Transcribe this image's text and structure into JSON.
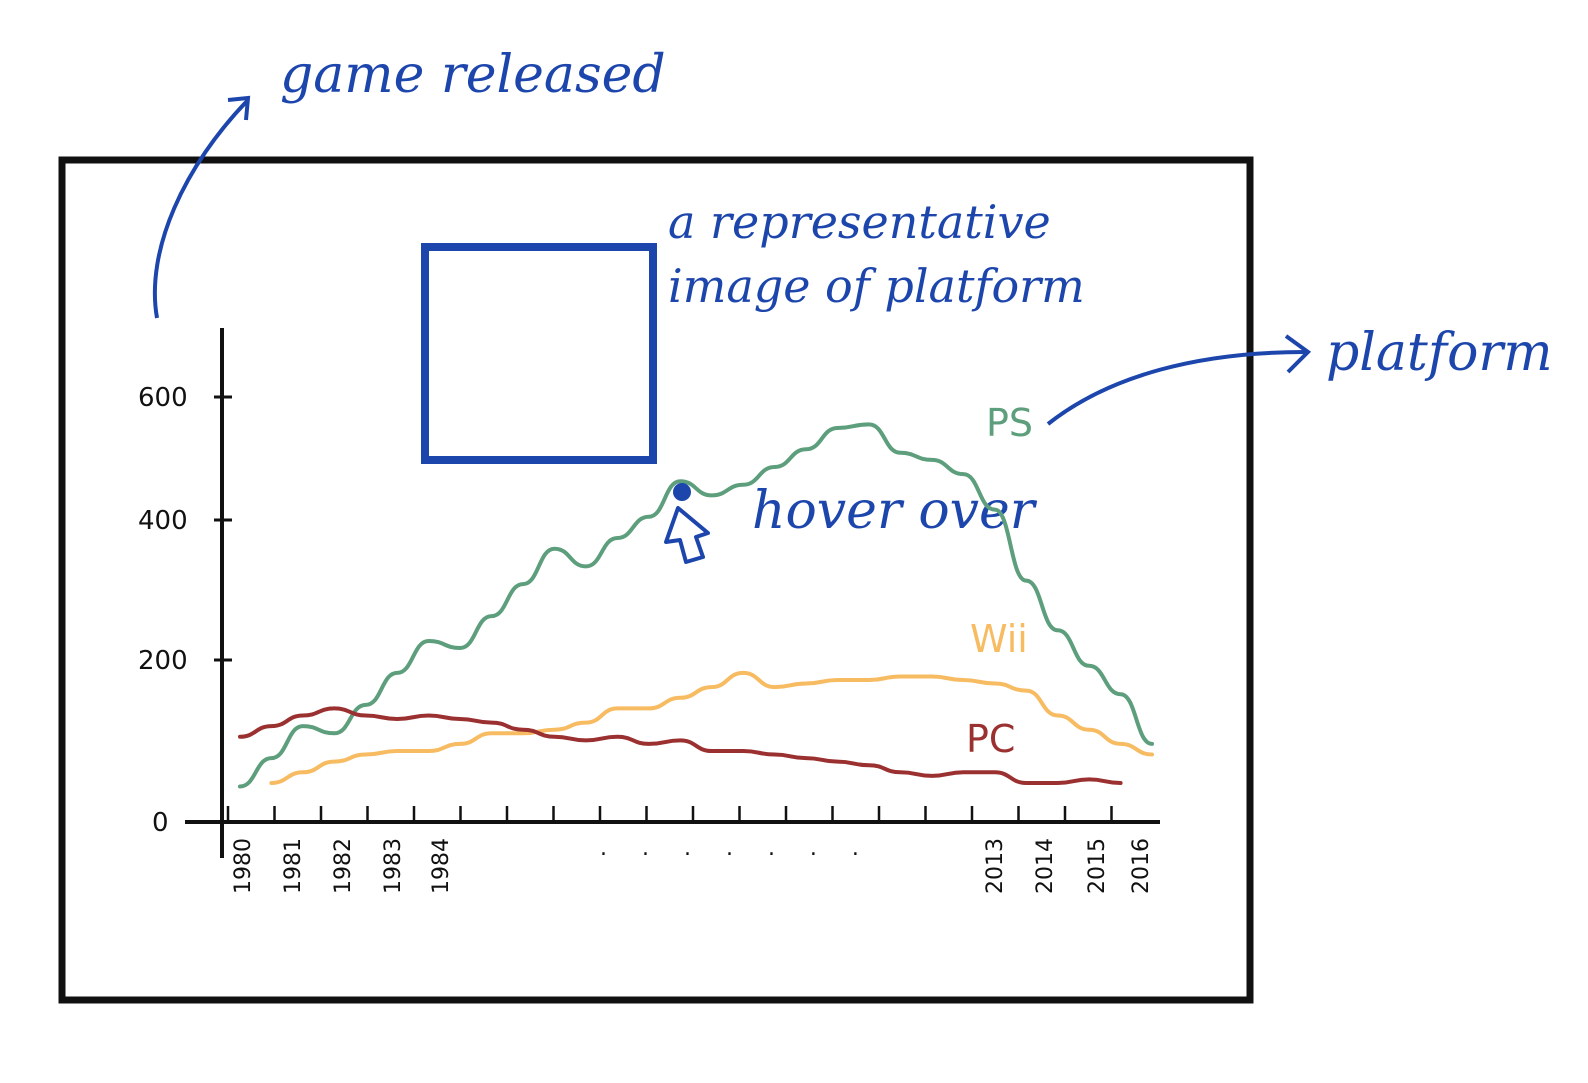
{
  "annotations": {
    "game_released": "game released",
    "platform": "platform",
    "image_note_line1": "a representative",
    "image_note_line2": "image of platform",
    "hover_over": "hover over"
  },
  "colors": {
    "frame": "#111111",
    "annotation": "#1d46ad",
    "ps": "#5d9e7c",
    "wii": "#f7bb62",
    "pc": "#9b3030"
  },
  "icons": [
    "cursor-arrow-icon",
    "hover-point-icon",
    "arrow-curve-icon",
    "image-placeholder"
  ],
  "chart_data": {
    "type": "line",
    "title": "",
    "xlabel": "",
    "ylabel": "",
    "y_ticks": [
      "0",
      "200",
      "400",
      "600"
    ],
    "ylim": [
      0,
      650
    ],
    "x_tick_labels": [
      "1980",
      "1981",
      "1982",
      "1983",
      "1984",
      "2013",
      "2014",
      "2015",
      "2016"
    ],
    "ellipsis": ". . . . . . .",
    "grid": false,
    "legend": "inline labels at line ends",
    "series": [
      {
        "name": "PS",
        "color": "#5d9e7c",
        "values": [
          50,
          90,
          135,
          125,
          165,
          210,
          255,
          245,
          290,
          335,
          385,
          360,
          400,
          430,
          480,
          460,
          475,
          500,
          525,
          555,
          560,
          520,
          510,
          490,
          440,
          340,
          270,
          220,
          180,
          110
        ]
      },
      {
        "name": "Wii",
        "color": "#f7bb62",
        "values": [
          null,
          55,
          70,
          85,
          95,
          100,
          100,
          110,
          125,
          125,
          130,
          140,
          160,
          160,
          175,
          190,
          210,
          190,
          195,
          200,
          200,
          205,
          205,
          200,
          195,
          185,
          150,
          130,
          110,
          95
        ]
      },
      {
        "name": "PC",
        "color": "#9b3030",
        "values": [
          120,
          135,
          150,
          160,
          150,
          145,
          150,
          145,
          140,
          130,
          120,
          115,
          120,
          110,
          115,
          100,
          100,
          95,
          90,
          85,
          80,
          70,
          65,
          70,
          70,
          55,
          55,
          60,
          55,
          null
        ]
      }
    ]
  }
}
